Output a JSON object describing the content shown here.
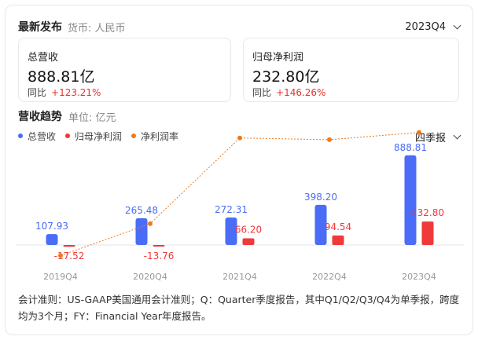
{
  "header": {
    "title": "最新发布",
    "currency": "货币: 人民币",
    "period": "2023Q4"
  },
  "cards": [
    {
      "label": "总营收",
      "value": "888.81亿",
      "yoy_label": "同比",
      "yoy_value": "+123.21%"
    },
    {
      "label": "归母净利润",
      "value": "232.80亿",
      "yoy_label": "同比",
      "yoy_value": "+146.26%"
    }
  ],
  "trend": {
    "title": "营收趋势",
    "unit": "单位: 亿元",
    "frequency": "四季报"
  },
  "legend": [
    {
      "name": "总营收",
      "color": "#4a6cf7"
    },
    {
      "name": "归母净利润",
      "color": "#f0393a"
    },
    {
      "name": "净利润率",
      "color": "#ee7a1a"
    }
  ],
  "footnote": "会计准则：US-GAAP美国通用会计准则；Q：Quarter季度报告，其中Q1/Q2/Q3/Q4为单季报，跨度均为3个月；FY：Financial Year年度报告。",
  "colors": {
    "revenue": "#4a6cf7",
    "profit": "#f0393a",
    "margin": "#ee7a1a",
    "up": "#e8332a"
  },
  "chart_data": {
    "type": "bar",
    "categories": [
      "2019Q4",
      "2020Q4",
      "2021Q4",
      "2022Q4",
      "2023Q4"
    ],
    "series": [
      {
        "name": "总营收",
        "type": "bar",
        "values": [
          107.93,
          265.48,
          272.31,
          398.2,
          888.81
        ],
        "labels": [
          "107.93",
          "265.48",
          "272.31",
          "398.20",
          "888.81"
        ]
      },
      {
        "name": "归母净利润",
        "type": "bar",
        "values": [
          -17.52,
          -13.76,
          66.2,
          94.54,
          232.8
        ],
        "labels": [
          "-17.52",
          "-13.76",
          "66.20",
          "94.54",
          "232.80"
        ]
      },
      {
        "name": "净利润率",
        "type": "line",
        "values": [
          -16.2,
          -5.2,
          24.3,
          23.7,
          26.2
        ]
      }
    ],
    "ylim": [
      -60,
      900
    ],
    "margin_ylim": [
      -25,
      30
    ],
    "grid": false,
    "legend_position": "top-left"
  }
}
